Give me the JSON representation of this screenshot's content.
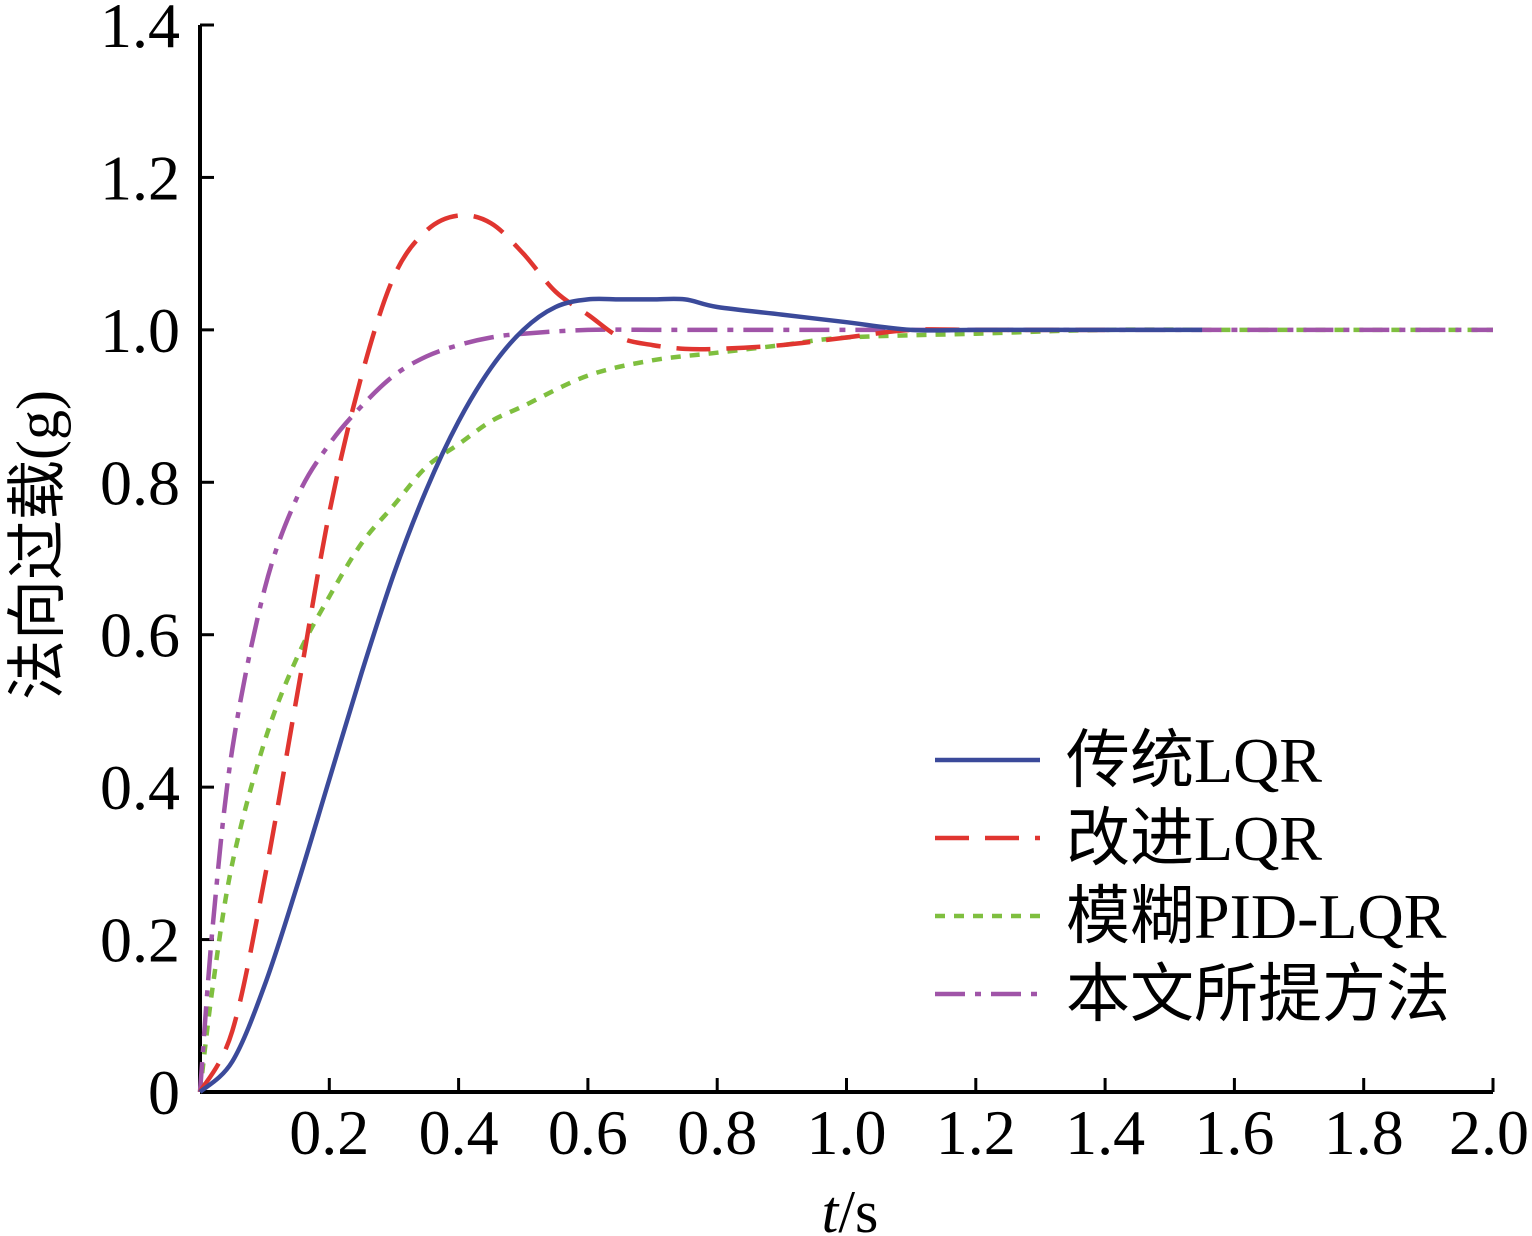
{
  "chart_data": {
    "type": "line",
    "title": "",
    "xlabel": "t/s",
    "xlabel_italic": "t",
    "xlabel_rest": "/s",
    "ylabel": "法向过载(g)",
    "xlim": [
      0,
      2.0
    ],
    "ylim": [
      0,
      1.4
    ],
    "xticks": [
      "0.2",
      "0.4",
      "0.6",
      "0.8",
      "1.0",
      "1.2",
      "1.4",
      "1.6",
      "1.8",
      "2.0"
    ],
    "yticks": [
      "0",
      "0.2",
      "0.4",
      "0.6",
      "0.8",
      "1.0",
      "1.2",
      "1.4"
    ],
    "grid": false,
    "legend_position": "bottom-right",
    "series": [
      {
        "name": "传统LQR",
        "color": "#3b4a9a",
        "style": "solid",
        "x": [
          0,
          0.05,
          0.1,
          0.15,
          0.2,
          0.25,
          0.3,
          0.35,
          0.4,
          0.45,
          0.5,
          0.55,
          0.6,
          0.65,
          0.7,
          0.75,
          0.8,
          0.9,
          1.0,
          1.1,
          1.2,
          1.3,
          1.4,
          1.55
        ],
        "y": [
          0,
          0.04,
          0.14,
          0.27,
          0.41,
          0.55,
          0.68,
          0.79,
          0.88,
          0.95,
          1.0,
          1.03,
          1.04,
          1.04,
          1.04,
          1.04,
          1.03,
          1.02,
          1.01,
          1.0,
          1.0,
          1.0,
          1.0,
          1.0
        ]
      },
      {
        "name": "改进LQR",
        "color": "#e03530",
        "style": "dashed",
        "x": [
          0,
          0.05,
          0.1,
          0.15,
          0.2,
          0.25,
          0.3,
          0.35,
          0.4,
          0.45,
          0.5,
          0.55,
          0.6,
          0.65,
          0.7,
          0.75,
          0.8,
          0.9,
          1.0,
          1.1,
          1.2,
          1.3,
          1.4
        ],
        "y": [
          0,
          0.08,
          0.28,
          0.52,
          0.76,
          0.94,
          1.07,
          1.13,
          1.15,
          1.14,
          1.1,
          1.05,
          1.02,
          0.99,
          0.98,
          0.975,
          0.975,
          0.98,
          0.99,
          1.0,
          1.0,
          1.0,
          1.0
        ]
      },
      {
        "name": "模糊PID-LQR",
        "color": "#7fbf3f",
        "style": "dotted",
        "x": [
          0,
          0.02,
          0.05,
          0.1,
          0.15,
          0.2,
          0.25,
          0.3,
          0.35,
          0.4,
          0.45,
          0.5,
          0.6,
          0.7,
          0.8,
          0.9,
          1.0,
          1.2,
          1.4,
          1.6,
          1.8,
          2.0
        ],
        "y": [
          0,
          0.14,
          0.3,
          0.46,
          0.57,
          0.65,
          0.72,
          0.77,
          0.82,
          0.85,
          0.88,
          0.9,
          0.94,
          0.96,
          0.97,
          0.98,
          0.99,
          0.995,
          1.0,
          1.0,
          1.0,
          1.0
        ]
      },
      {
        "name": "本文所提方法",
        "color": "#a054a8",
        "style": "dashdot",
        "x": [
          0,
          0.02,
          0.05,
          0.1,
          0.15,
          0.2,
          0.25,
          0.3,
          0.35,
          0.4,
          0.45,
          0.5,
          0.6,
          0.7,
          0.8,
          1.0,
          1.2,
          1.4,
          1.6,
          1.8,
          2.0
        ],
        "y": [
          0,
          0.22,
          0.45,
          0.66,
          0.78,
          0.85,
          0.9,
          0.94,
          0.965,
          0.98,
          0.99,
          0.995,
          1.0,
          1.0,
          1.0,
          1.0,
          1.0,
          1.0,
          1.0,
          1.0,
          1.0
        ]
      }
    ]
  }
}
